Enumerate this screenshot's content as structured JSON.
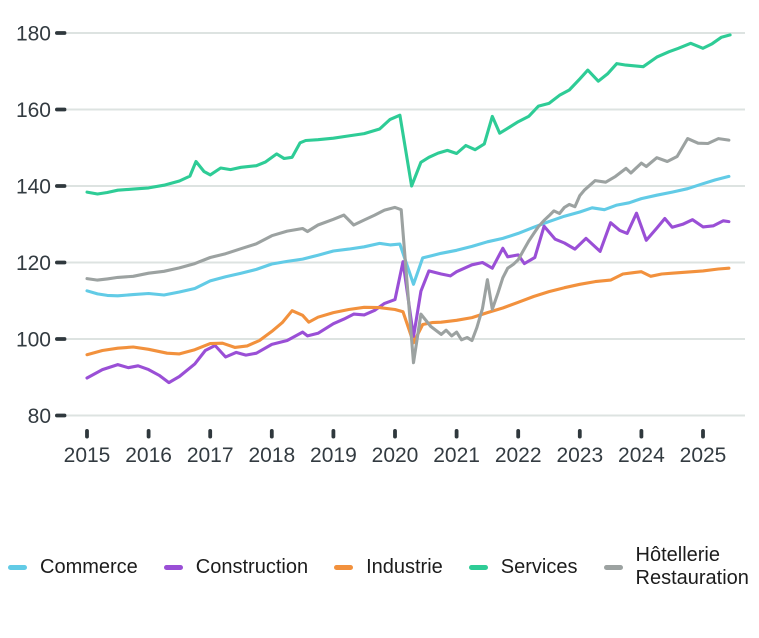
{
  "chart_data": {
    "type": "line",
    "title": "",
    "xlabel": "",
    "ylabel": "",
    "x_axis": {
      "ticks": [
        "2015",
        "2016",
        "2017",
        "2018",
        "2019",
        "2020",
        "2021",
        "2022",
        "2023",
        "2024",
        "2025"
      ],
      "range": [
        2014.7,
        2025.6
      ]
    },
    "y_axis": {
      "ticks": [
        180,
        160,
        140,
        120,
        100,
        80
      ],
      "range": [
        80,
        180
      ],
      "grid": "horizontal"
    },
    "legend_position": "bottom",
    "grid_color": "#dde3e1",
    "tick_color": "#2f383d",
    "axis_label_color": "#333b41",
    "series": [
      {
        "name": "Commerce",
        "color": "#62cbe6",
        "x": [
          2015.0,
          2015.17,
          2015.33,
          2015.5,
          2015.75,
          2016.0,
          2016.25,
          2016.5,
          2016.75,
          2017.0,
          2017.25,
          2017.5,
          2017.75,
          2018.0,
          2018.25,
          2018.5,
          2018.75,
          2019.0,
          2019.25,
          2019.5,
          2019.75,
          2019.92,
          2020.08,
          2020.3,
          2020.45,
          2020.6,
          2020.75,
          2021.0,
          2021.25,
          2021.5,
          2021.75,
          2022.0,
          2022.25,
          2022.5,
          2022.75,
          2023.0,
          2023.2,
          2023.4,
          2023.6,
          2023.8,
          2024.0,
          2024.25,
          2024.5,
          2024.75,
          2025.0,
          2025.2,
          2025.42
        ],
        "y": [
          112.6,
          111.8,
          111.4,
          111.3,
          111.6,
          111.9,
          111.5,
          112.3,
          113.2,
          115.2,
          116.3,
          117.2,
          118.2,
          119.6,
          120.3,
          120.9,
          121.9,
          123.0,
          123.5,
          124.1,
          125.0,
          124.6,
          124.8,
          114.3,
          121.2,
          121.8,
          122.4,
          123.2,
          124.2,
          125.4,
          126.3,
          127.6,
          129.2,
          130.7,
          132.1,
          133.2,
          134.3,
          133.8,
          135.0,
          135.6,
          136.7,
          137.6,
          138.4,
          139.3,
          140.6,
          141.6,
          142.5
        ]
      },
      {
        "name": "Construction",
        "color": "#9a4fd6",
        "x": [
          2015.0,
          2015.25,
          2015.5,
          2015.67,
          2015.83,
          2016.0,
          2016.17,
          2016.33,
          2016.5,
          2016.75,
          2016.92,
          2017.08,
          2017.25,
          2017.42,
          2017.58,
          2017.75,
          2018.0,
          2018.25,
          2018.5,
          2018.58,
          2018.75,
          2019.0,
          2019.17,
          2019.33,
          2019.5,
          2019.67,
          2019.83,
          2020.0,
          2020.13,
          2020.3,
          2020.42,
          2020.55,
          2020.75,
          2020.9,
          2021.0,
          2021.25,
          2021.42,
          2021.58,
          2021.75,
          2021.83,
          2022.0,
          2022.1,
          2022.27,
          2022.42,
          2022.6,
          2022.75,
          2022.92,
          2023.1,
          2023.33,
          2023.5,
          2023.65,
          2023.77,
          2023.92,
          2024.08,
          2024.25,
          2024.38,
          2024.5,
          2024.67,
          2024.83,
          2025.0,
          2025.17,
          2025.33,
          2025.42
        ],
        "y": [
          89.8,
          92.0,
          93.3,
          92.5,
          93.0,
          92.0,
          90.5,
          88.6,
          90.2,
          93.5,
          97.0,
          98.3,
          95.3,
          96.5,
          95.8,
          96.3,
          98.6,
          99.6,
          101.8,
          100.8,
          101.5,
          104.0,
          105.2,
          106.5,
          106.3,
          107.5,
          109.3,
          110.3,
          120.2,
          100.6,
          112.5,
          117.8,
          117.0,
          116.5,
          117.6,
          119.4,
          120.0,
          118.5,
          123.7,
          121.5,
          122.0,
          119.7,
          121.3,
          129.5,
          126.1,
          125.1,
          123.5,
          126.3,
          122.9,
          130.4,
          128.4,
          127.6,
          132.9,
          125.8,
          129.0,
          131.5,
          129.2,
          130.0,
          131.2,
          129.3,
          129.6,
          130.9,
          130.7
        ]
      },
      {
        "name": "Industrie",
        "color": "#f2913d",
        "x": [
          2015.0,
          2015.25,
          2015.5,
          2015.75,
          2016.0,
          2016.3,
          2016.5,
          2016.75,
          2017.0,
          2017.2,
          2017.4,
          2017.6,
          2017.8,
          2018.0,
          2018.17,
          2018.33,
          2018.5,
          2018.6,
          2018.75,
          2019.0,
          2019.25,
          2019.5,
          2019.75,
          2020.0,
          2020.13,
          2020.3,
          2020.45,
          2020.6,
          2020.75,
          2021.0,
          2021.25,
          2021.5,
          2021.75,
          2022.0,
          2022.25,
          2022.5,
          2022.75,
          2023.0,
          2023.25,
          2023.5,
          2023.7,
          2023.85,
          2024.0,
          2024.15,
          2024.33,
          2024.5,
          2024.75,
          2025.0,
          2025.25,
          2025.42
        ],
        "y": [
          95.9,
          97.0,
          97.6,
          97.9,
          97.3,
          96.3,
          96.1,
          97.2,
          98.8,
          98.9,
          97.8,
          98.2,
          99.6,
          102.0,
          104.3,
          107.4,
          106.2,
          104.4,
          105.7,
          106.9,
          107.7,
          108.3,
          108.2,
          107.7,
          107.1,
          99.0,
          103.8,
          104.3,
          104.4,
          104.9,
          105.6,
          106.9,
          108.1,
          109.6,
          111.1,
          112.4,
          113.4,
          114.3,
          115.0,
          115.4,
          117.0,
          117.3,
          117.6,
          116.4,
          117.0,
          117.2,
          117.5,
          117.8,
          118.3,
          118.5
        ]
      },
      {
        "name": "Services",
        "color": "#2ecc96",
        "x": [
          2015.0,
          2015.17,
          2015.33,
          2015.5,
          2015.75,
          2016.0,
          2016.25,
          2016.5,
          2016.67,
          2016.77,
          2016.9,
          2017.0,
          2017.17,
          2017.33,
          2017.5,
          2017.75,
          2017.9,
          2018.08,
          2018.2,
          2018.33,
          2018.46,
          2018.55,
          2018.75,
          2019.0,
          2019.25,
          2019.5,
          2019.75,
          2019.92,
          2020.08,
          2020.27,
          2020.42,
          2020.55,
          2020.7,
          2020.85,
          2021.0,
          2021.15,
          2021.3,
          2021.45,
          2021.58,
          2021.7,
          2021.85,
          2022.0,
          2022.17,
          2022.33,
          2022.5,
          2022.67,
          2022.83,
          2023.0,
          2023.13,
          2023.3,
          2023.45,
          2023.6,
          2023.75,
          2023.9,
          2024.03,
          2024.25,
          2024.45,
          2024.6,
          2024.8,
          2025.0,
          2025.15,
          2025.3,
          2025.44
        ],
        "y": [
          138.4,
          137.9,
          138.3,
          138.9,
          139.2,
          139.5,
          140.2,
          141.3,
          142.6,
          146.4,
          143.8,
          142.9,
          144.7,
          144.3,
          144.9,
          145.3,
          146.3,
          148.4,
          147.2,
          147.5,
          151.3,
          151.9,
          152.1,
          152.5,
          153.1,
          153.7,
          154.9,
          157.4,
          158.5,
          140.0,
          146.2,
          147.5,
          148.6,
          149.3,
          148.5,
          150.6,
          149.5,
          151.0,
          158.2,
          153.8,
          155.3,
          156.8,
          158.2,
          160.9,
          161.6,
          163.7,
          165.1,
          168.0,
          170.3,
          167.4,
          169.3,
          172.0,
          171.6,
          171.4,
          171.2,
          173.7,
          175.1,
          176.0,
          177.3,
          176.0,
          177.2,
          178.9,
          179.5
        ]
      },
      {
        "name": "Hôtellerie Restauration",
        "color": "#9ca2a1",
        "x": [
          2015.0,
          2015.17,
          2015.33,
          2015.5,
          2015.75,
          2016.0,
          2016.25,
          2016.5,
          2016.75,
          2017.0,
          2017.25,
          2017.5,
          2017.75,
          2018.0,
          2018.25,
          2018.5,
          2018.58,
          2018.75,
          2019.0,
          2019.17,
          2019.33,
          2019.5,
          2019.67,
          2019.83,
          2020.0,
          2020.1,
          2020.3,
          2020.42,
          2020.58,
          2020.75,
          2020.83,
          2020.92,
          2021.0,
          2021.08,
          2021.17,
          2021.25,
          2021.33,
          2021.42,
          2021.5,
          2021.58,
          2021.67,
          2021.75,
          2021.83,
          2021.92,
          2022.0,
          2022.08,
          2022.17,
          2022.25,
          2022.33,
          2022.42,
          2022.5,
          2022.58,
          2022.67,
          2022.75,
          2022.83,
          2022.92,
          2023.0,
          2023.08,
          2023.25,
          2023.42,
          2023.58,
          2023.75,
          2023.83,
          2024.0,
          2024.08,
          2024.25,
          2024.42,
          2024.58,
          2024.75,
          2024.92,
          2025.08,
          2025.25,
          2025.42
        ],
        "y": [
          115.8,
          115.4,
          115.7,
          116.1,
          116.4,
          117.2,
          117.7,
          118.6,
          119.7,
          121.3,
          122.3,
          123.6,
          124.9,
          127.0,
          128.2,
          128.9,
          128.1,
          129.8,
          131.3,
          132.4,
          129.8,
          131.1,
          132.4,
          133.7,
          134.4,
          133.8,
          93.8,
          106.5,
          103.3,
          101.2,
          102.3,
          100.8,
          101.8,
          99.8,
          100.4,
          99.6,
          103.0,
          108.0,
          115.5,
          107.8,
          112.0,
          116.0,
          118.5,
          119.5,
          120.7,
          123.0,
          125.6,
          127.5,
          129.4,
          131.0,
          132.2,
          133.5,
          132.8,
          134.4,
          135.2,
          134.6,
          137.5,
          139.0,
          141.4,
          141.0,
          142.5,
          144.6,
          143.4,
          146.0,
          145.1,
          147.4,
          146.4,
          147.7,
          152.4,
          151.2,
          151.1,
          152.4,
          152.0
        ]
      }
    ]
  }
}
